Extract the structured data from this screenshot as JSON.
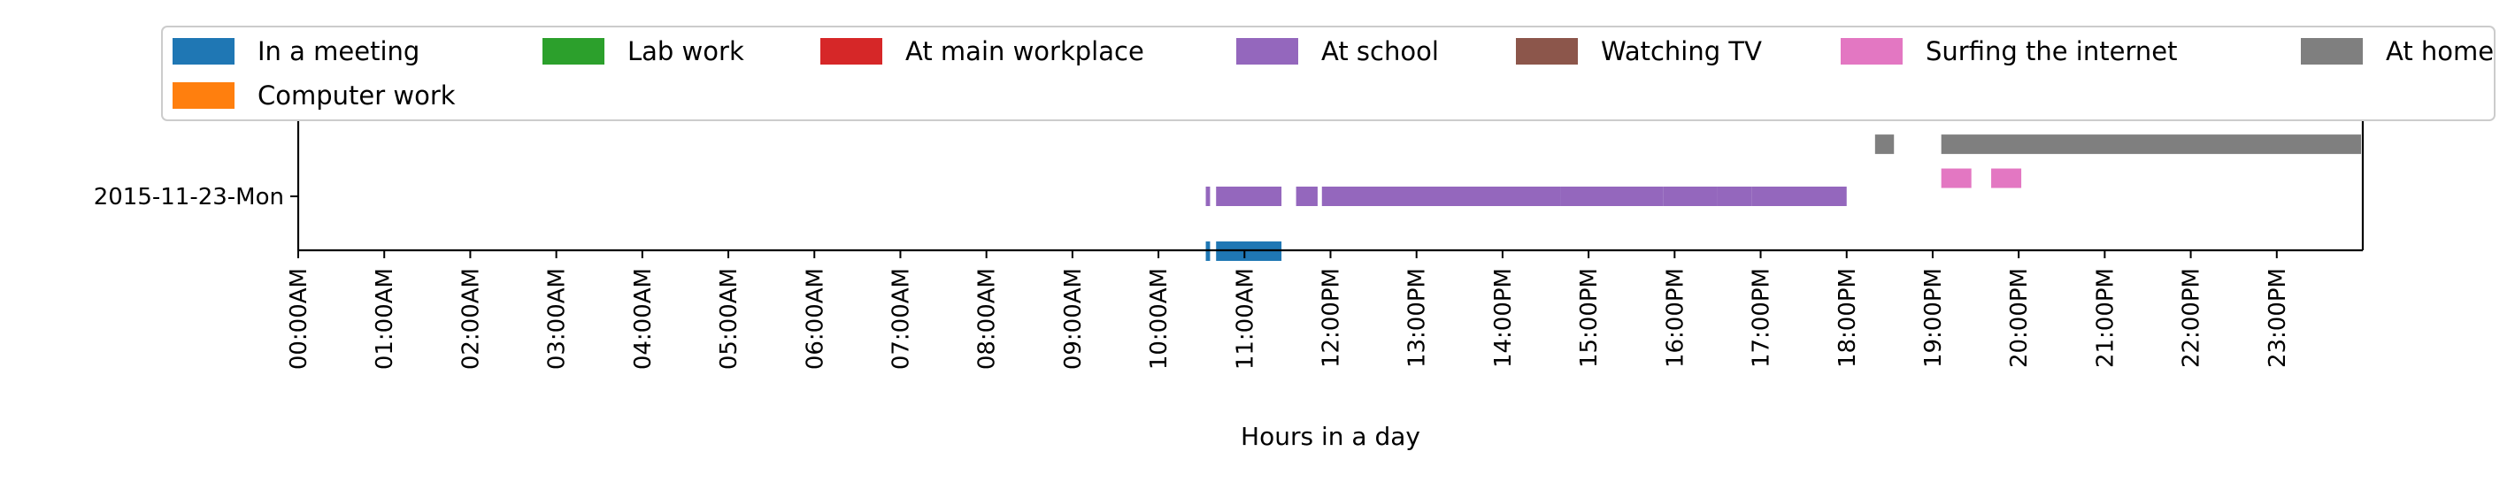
{
  "chart_data": {
    "type": "timeline",
    "title": "",
    "xlabel": "Hours in a day",
    "ylabel": "",
    "xlim": [
      0,
      24
    ],
    "x_ticks": [
      {
        "value": 0,
        "label": "00:00AM"
      },
      {
        "value": 1,
        "label": "01:00AM"
      },
      {
        "value": 2,
        "label": "02:00AM"
      },
      {
        "value": 3,
        "label": "03:00AM"
      },
      {
        "value": 4,
        "label": "04:00AM"
      },
      {
        "value": 5,
        "label": "05:00AM"
      },
      {
        "value": 6,
        "label": "06:00AM"
      },
      {
        "value": 7,
        "label": "07:00AM"
      },
      {
        "value": 8,
        "label": "08:00AM"
      },
      {
        "value": 9,
        "label": "09:00AM"
      },
      {
        "value": 10,
        "label": "10:00AM"
      },
      {
        "value": 11,
        "label": "11:00AM"
      },
      {
        "value": 12,
        "label": "12:00PM"
      },
      {
        "value": 13,
        "label": "13:00PM"
      },
      {
        "value": 14,
        "label": "14:00PM"
      },
      {
        "value": 15,
        "label": "15:00PM"
      },
      {
        "value": 16,
        "label": "16:00PM"
      },
      {
        "value": 17,
        "label": "17:00PM"
      },
      {
        "value": 18,
        "label": "18:00PM"
      },
      {
        "value": 19,
        "label": "19:00PM"
      },
      {
        "value": 20,
        "label": "20:00PM"
      },
      {
        "value": 21,
        "label": "21:00PM"
      },
      {
        "value": 22,
        "label": "22:00PM"
      },
      {
        "value": 23,
        "label": "23:00PM"
      }
    ],
    "y_categories": [
      "2015-11-23-Mon"
    ],
    "grid": false,
    "legend": {
      "placement": "top",
      "columns": 7,
      "entries": [
        {
          "name": "In a meeting",
          "color": "#1f77b4"
        },
        {
          "name": "Lab work",
          "color": "#2ca02c"
        },
        {
          "name": "At main workplace",
          "color": "#d62728"
        },
        {
          "name": "At school",
          "color": "#9467bd"
        },
        {
          "name": "Watching TV",
          "color": "#8c564b"
        },
        {
          "name": "Surfing the internet",
          "color": "#e377c2"
        },
        {
          "name": "At home",
          "color": "#7f7f7f"
        },
        {
          "name": "Computer work",
          "color": "#ff7f0e"
        }
      ]
    },
    "series": [
      {
        "name": "In a meeting",
        "color": "#1f77b4",
        "level": -1,
        "intervals": [
          [
            10.55,
            10.6
          ],
          [
            10.67,
            11.43
          ]
        ]
      },
      {
        "name": "At school",
        "color": "#9467bd",
        "level": 0,
        "intervals": [
          [
            10.55,
            10.6
          ],
          [
            10.67,
            11.43
          ],
          [
            11.6,
            11.85
          ],
          [
            11.9,
            14.67
          ],
          [
            14.67,
            15.87
          ],
          [
            15.87,
            16.5
          ],
          [
            16.5,
            16.9
          ],
          [
            16.9,
            18.0
          ]
        ]
      },
      {
        "name": "Surfing the internet",
        "color": "#e377c2",
        "level": 0.33,
        "intervals": [
          [
            19.1,
            19.45
          ],
          [
            19.68,
            20.03
          ]
        ]
      },
      {
        "name": "At home",
        "color": "#7f7f7f",
        "level": 0.95,
        "intervals": [
          [
            18.33,
            18.55
          ],
          [
            19.1,
            23.98
          ]
        ]
      }
    ]
  }
}
